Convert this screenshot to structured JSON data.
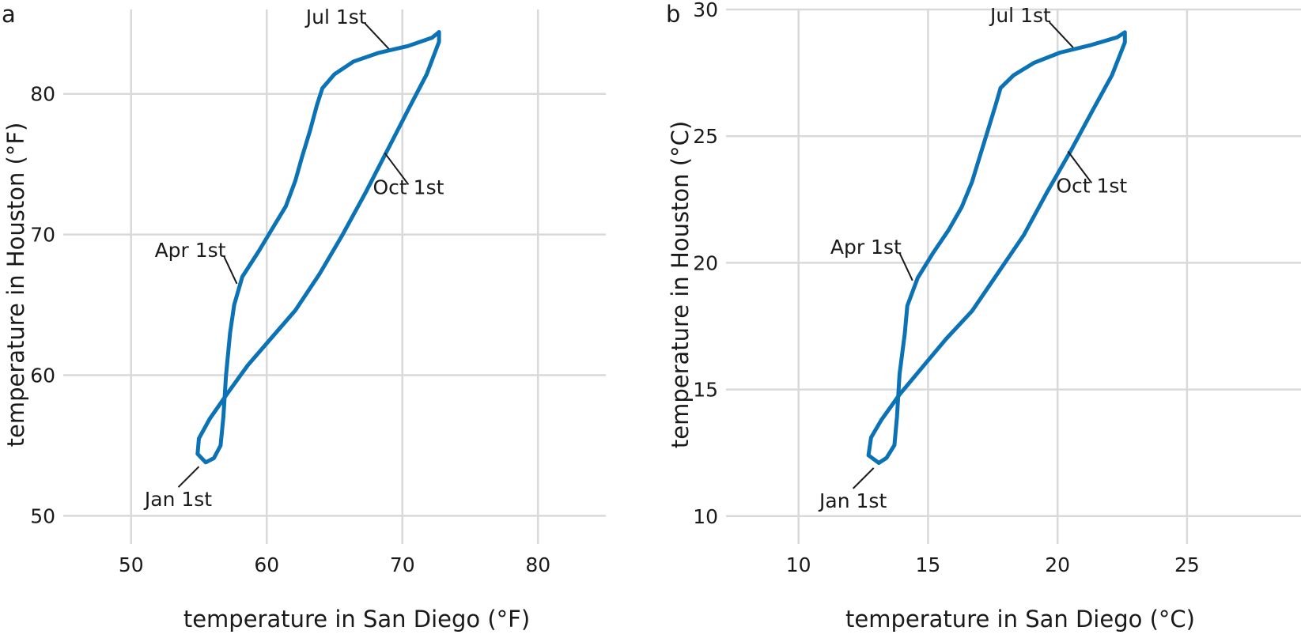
{
  "colors": {
    "series": "#0a72b5",
    "grid": "#d9d9d9",
    "text": "#1a1a1a"
  },
  "chart_data": [
    {
      "type": "line",
      "panel_label": "a",
      "xlabel": "temperature in San Diego (°F)",
      "ylabel": "temperature in Houston (°F)",
      "xlim": [
        45,
        85
      ],
      "ylim": [
        48,
        86
      ],
      "xticks": [
        50,
        60,
        70,
        80
      ],
      "yticks": [
        50,
        60,
        70,
        80
      ],
      "grid": true,
      "series": [
        {
          "x": [
            55.5,
            56.1,
            56.6,
            56.8,
            57.0,
            57.3,
            57.6,
            58.2,
            59.4,
            60.4,
            61.4,
            62.1,
            62.6,
            63.2,
            63.7,
            64.1,
            65.0,
            66.4,
            68.2,
            70.4,
            72.2,
            72.7,
            72.7,
            71.8,
            70.5,
            68.9,
            67.3,
            65.6,
            63.9,
            62.1,
            60.3,
            58.6,
            57.1,
            55.8,
            55.0,
            54.9,
            55.5
          ],
          "y": [
            53.8,
            54.1,
            55.0,
            57.0,
            60.0,
            63.0,
            65.0,
            67.0,
            68.8,
            70.4,
            72.0,
            73.8,
            75.5,
            77.4,
            79.2,
            80.4,
            81.4,
            82.3,
            82.9,
            83.4,
            84.0,
            84.4,
            83.7,
            81.4,
            79.0,
            76.0,
            73.0,
            70.0,
            67.2,
            64.6,
            62.6,
            60.7,
            58.7,
            56.9,
            55.5,
            54.4,
            53.8
          ]
        }
      ],
      "annotations": [
        {
          "text": "Jul 1st",
          "x": 69.0,
          "y": 83.2
        },
        {
          "text": "Apr 1st",
          "x": 57.8,
          "y": 66.5
        },
        {
          "text": "Oct 1st",
          "x": 68.7,
          "y": 75.8
        },
        {
          "text": "Jan 1st",
          "x": 55.0,
          "y": 53.5
        }
      ]
    },
    {
      "type": "line",
      "panel_label": "b",
      "xlabel": "temperature in San Diego (°C)",
      "ylabel": "temperature in Houston (°C)",
      "xlim": [
        7.2,
        29.4
      ],
      "ylim": [
        8.9,
        30.0
      ],
      "xticks": [
        10,
        15,
        20,
        25
      ],
      "yticks": [
        10,
        15,
        20,
        25,
        30
      ],
      "grid": true,
      "series": [
        {
          "x": [
            13.1,
            13.4,
            13.7,
            13.8,
            13.9,
            14.1,
            14.2,
            14.6,
            15.2,
            15.8,
            16.3,
            16.7,
            17.0,
            17.3,
            17.6,
            17.8,
            18.3,
            19.1,
            20.1,
            21.3,
            22.3,
            22.6,
            22.6,
            22.1,
            21.4,
            20.5,
            19.6,
            18.7,
            17.7,
            16.7,
            15.7,
            14.8,
            13.9,
            13.2,
            12.8,
            12.7,
            13.1
          ],
          "y": [
            12.1,
            12.3,
            12.8,
            13.9,
            15.6,
            17.2,
            18.3,
            19.4,
            20.4,
            21.3,
            22.2,
            23.2,
            24.2,
            25.2,
            26.2,
            26.9,
            27.4,
            27.9,
            28.3,
            28.6,
            28.9,
            29.1,
            28.7,
            27.4,
            26.1,
            24.4,
            22.8,
            21.1,
            19.6,
            18.1,
            17.0,
            15.9,
            14.8,
            13.8,
            13.1,
            12.4,
            12.1
          ]
        }
      ],
      "annotations": [
        {
          "text": "Jul 1st",
          "x": 20.6,
          "y": 28.5
        },
        {
          "text": "Apr 1st",
          "x": 14.4,
          "y": 19.3
        },
        {
          "text": "Oct 1st",
          "x": 20.4,
          "y": 24.4
        },
        {
          "text": "Jan 1st",
          "x": 12.9,
          "y": 11.9
        }
      ]
    }
  ]
}
